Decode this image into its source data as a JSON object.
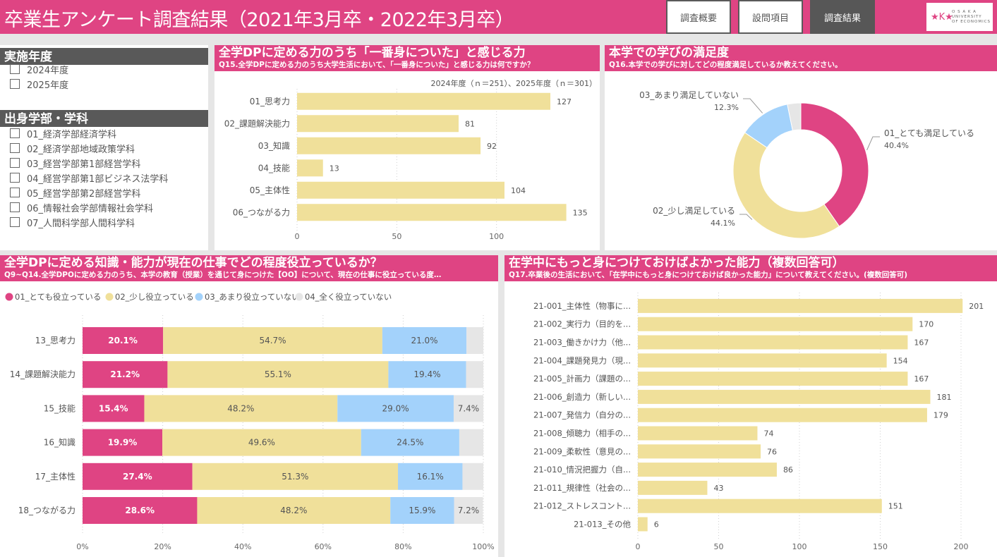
{
  "header": {
    "title": "卒業生アンケート調査結果（2021年3月卒・2022年3月卒）",
    "nav": [
      {
        "label": "調査概要",
        "active": false
      },
      {
        "label": "設問項目",
        "active": false
      },
      {
        "label": "調査結果",
        "active": true
      }
    ],
    "logo": {
      "mark": "★K★",
      "line1": "O S A K A",
      "line2": "UNIVERSITY",
      "line3": "OF ECONOMICS"
    }
  },
  "colors": {
    "brand": "#df4483",
    "bar": "#f0e09a",
    "blue": "#a3d2fb",
    "gray": "#e6e6e6",
    "filter_header": "#595959"
  },
  "filters": {
    "year": {
      "title": "実施年度",
      "items": [
        "2024年度",
        "2025年度"
      ]
    },
    "faculty": {
      "title": "出身学部・学科",
      "items": [
        "01_経済学部経済学科",
        "02_経済学部地域政策学科",
        "03_経営学部第1部経営学科",
        "04_経営学部第1部ビジネス法学科",
        "05_経営学部第2部経営学科",
        "06_情報社会学部情報社会学科",
        "07_人間科学部人間科学科"
      ]
    }
  },
  "panels": {
    "q15": {
      "title": "全学DPに定める力のうち「一番身についた」と感じる力",
      "subtitle": "Q15.全学DPに定める力のうち大学生活において、「一番身についた」と感じる力は何ですか？",
      "note": "2024年度（ｎ＝251）、2025年度（ｎ＝301）"
    },
    "q16": {
      "title": "本学での学びの満足度",
      "subtitle": "Q16.本学での学びに対してどの程度満足しているか教えてください。"
    },
    "q9_14": {
      "title": "全学DPに定める知識・能力が現在の仕事でどの程度役立っているか？",
      "subtitle": "Q9~Q14.全学DPOに定める力のうち、本学の教育（授業）を通じて身につけた【OO】について、現在の仕事に役立っている度…"
    },
    "q17": {
      "title": "在学中にもっと身につけておけばよかった能力（複数回答可）",
      "subtitle": "Q17.卒業後の生活において、「在学中にもっと身につけておけば良かった能力」について教えてください。(複数回答可)"
    }
  },
  "chart_data": [
    {
      "id": "q15",
      "type": "bar",
      "orientation": "horizontal",
      "categories": [
        "01_思考力",
        "02_課題解決能力",
        "03_知識",
        "04_技能",
        "05_主体性",
        "06_つながる力"
      ],
      "values": [
        127,
        81,
        92,
        13,
        104,
        135
      ],
      "xlim": [
        0,
        150
      ],
      "xticks": [
        0,
        50,
        100
      ],
      "grid": true
    },
    {
      "id": "q16",
      "type": "pie",
      "donut": true,
      "labels": [
        "01_とても満足している",
        "02_少し満足している",
        "03_あまり満足していない",
        "04_全く満足していない"
      ],
      "values": [
        40.4,
        44.1,
        12.3,
        3.2
      ],
      "value_labels": [
        "40.4%",
        "44.1%",
        "12.3%",
        ""
      ],
      "colors": [
        "#df4483",
        "#f0e09a",
        "#a3d2fb",
        "#e6e6e6"
      ]
    },
    {
      "id": "q9_14",
      "type": "bar",
      "stacked": "percent",
      "orientation": "horizontal",
      "categories": [
        "13_思考力",
        "14_課題解決能力",
        "15_技能",
        "16_知識",
        "17_主体性",
        "18_つながる力"
      ],
      "series": [
        {
          "name": "01_とても役立っている",
          "color": "#df4483",
          "values": [
            20.1,
            21.2,
            15.4,
            19.9,
            27.4,
            28.6
          ]
        },
        {
          "name": "02_少し役立っている",
          "color": "#f0e09a",
          "values": [
            54.7,
            55.1,
            48.2,
            49.6,
            51.3,
            48.2
          ]
        },
        {
          "name": "03_あまり役立っていない",
          "color": "#a3d2fb",
          "values": [
            21.0,
            19.4,
            29.0,
            24.5,
            16.1,
            15.9
          ]
        },
        {
          "name": "04_全く役立っていない",
          "color": "#e6e6e6",
          "values": [
            4.2,
            4.3,
            7.4,
            6.0,
            5.2,
            7.2
          ]
        }
      ],
      "show_labels": [
        [
          true,
          true,
          true,
          false
        ],
        [
          true,
          true,
          true,
          false
        ],
        [
          true,
          true,
          true,
          true
        ],
        [
          true,
          true,
          true,
          false
        ],
        [
          true,
          true,
          true,
          false
        ],
        [
          true,
          true,
          true,
          true
        ]
      ],
      "xticks": [
        "0%",
        "20%",
        "40%",
        "60%",
        "80%",
        "100%"
      ],
      "legend": "top-left"
    },
    {
      "id": "q17",
      "type": "bar",
      "orientation": "horizontal",
      "categories": [
        "21-001_主体性（物事に...",
        "21-002_実行力（目的を...",
        "21-003_働きかけ力（他...",
        "21-004_課題発見力（現...",
        "21-005_計画力（課題の...",
        "21-006_創造力（新しい...",
        "21-007_発信力（自分の...",
        "21-008_傾聴力（相手の...",
        "21-009_柔軟性（意見の...",
        "21-010_情況把握力（自...",
        "21-011_規律性（社会の...",
        "21-012_ストレスコント...",
        "21-013_その他"
      ],
      "values": [
        201,
        170,
        167,
        154,
        167,
        181,
        179,
        74,
        76,
        86,
        43,
        151,
        6
      ],
      "xlim": [
        0,
        200
      ],
      "xticks": [
        0,
        50,
        100,
        150,
        200
      ],
      "grid": true
    }
  ]
}
